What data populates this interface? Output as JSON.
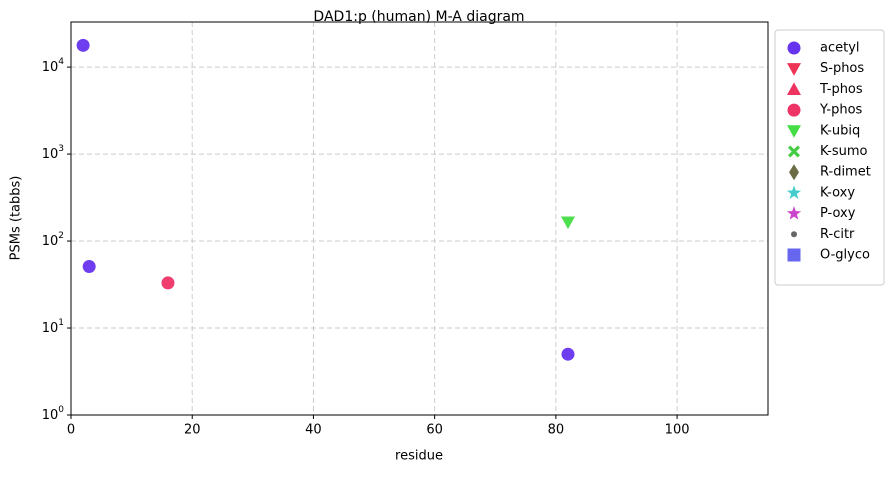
{
  "chart_data": {
    "type": "scatter",
    "title": "DAD1:p (human) M-A diagram",
    "x_label": "residue",
    "y_label": "PSMs (tabbs)",
    "xlim": [
      0,
      115
    ],
    "xticks": [
      0,
      20,
      40,
      60,
      80,
      100
    ],
    "ylim": [
      1,
      33000
    ],
    "y_scale": "log",
    "yticks": [
      {
        "value": 1,
        "label": "10^0"
      },
      {
        "value": 10,
        "label": "10^1"
      },
      {
        "value": 100,
        "label": "10^2"
      },
      {
        "value": 1000,
        "label": "10^3"
      },
      {
        "value": 10000,
        "label": "10^4"
      }
    ],
    "grid": true,
    "legend": "outside-right",
    "series": [
      {
        "name": "acetyl",
        "color": "#6633ee",
        "marker": "circle",
        "x": [
          2,
          3,
          82
        ],
        "values": [
          17800,
          51,
          5
        ]
      },
      {
        "name": "S-phos",
        "color": "#ee3355",
        "marker": "triangle-down",
        "x": [],
        "values": []
      },
      {
        "name": "T-phos",
        "color": "#ee3360",
        "marker": "triangle-up",
        "x": [],
        "values": []
      },
      {
        "name": "Y-phos",
        "color": "#ee3366",
        "marker": "circle",
        "x": [
          16
        ],
        "values": [
          33
        ]
      },
      {
        "name": "K-ubiq",
        "color": "#44dd44",
        "marker": "triangle-down",
        "x": [
          82
        ],
        "values": [
          165
        ]
      },
      {
        "name": "K-sumo",
        "color": "#44cc44",
        "marker": "x",
        "x": [],
        "values": []
      },
      {
        "name": "R-dimet",
        "color": "#6b6b45",
        "marker": "diamond",
        "x": [],
        "values": []
      },
      {
        "name": "K-oxy",
        "color": "#44cccc",
        "marker": "star",
        "x": [],
        "values": []
      },
      {
        "name": "P-oxy",
        "color": "#cc44cc",
        "marker": "star",
        "x": [],
        "values": []
      },
      {
        "name": "R-citr",
        "color": "#666666",
        "marker": "dot",
        "x": [],
        "values": []
      },
      {
        "name": "O-glyco",
        "color": "#6666ee",
        "marker": "square",
        "x": [],
        "values": []
      }
    ]
  }
}
